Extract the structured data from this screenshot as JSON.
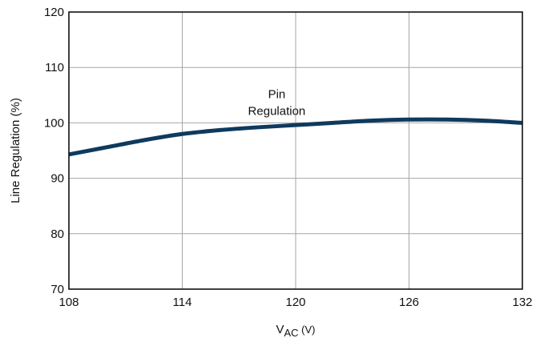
{
  "chart_data": {
    "type": "line",
    "title": "",
    "xlabel": "V",
    "xlabel_sub": "AC",
    "xlabel_unit": " (V)",
    "ylabel": "Line Regulation (%)",
    "xlim": [
      108,
      132
    ],
    "ylim": [
      70,
      120
    ],
    "xticks": [
      108,
      114,
      120,
      126,
      132
    ],
    "yticks": [
      70,
      80,
      90,
      100,
      110,
      120
    ],
    "grid": true,
    "annotation": {
      "lines": [
        "Pin",
        "Regulation"
      ],
      "x": 119,
      "y": 104.5
    },
    "series": [
      {
        "color": "#0e3a5e",
        "points": [
          [
            108,
            94.3
          ],
          [
            110,
            95.6
          ],
          [
            112,
            96.9
          ],
          [
            114,
            98.0
          ],
          [
            116,
            98.7
          ],
          [
            118,
            99.2
          ],
          [
            120,
            99.6
          ],
          [
            122,
            100.0
          ],
          [
            124,
            100.4
          ],
          [
            126,
            100.6
          ],
          [
            128,
            100.6
          ],
          [
            130,
            100.4
          ],
          [
            132,
            100.0
          ]
        ]
      }
    ]
  }
}
